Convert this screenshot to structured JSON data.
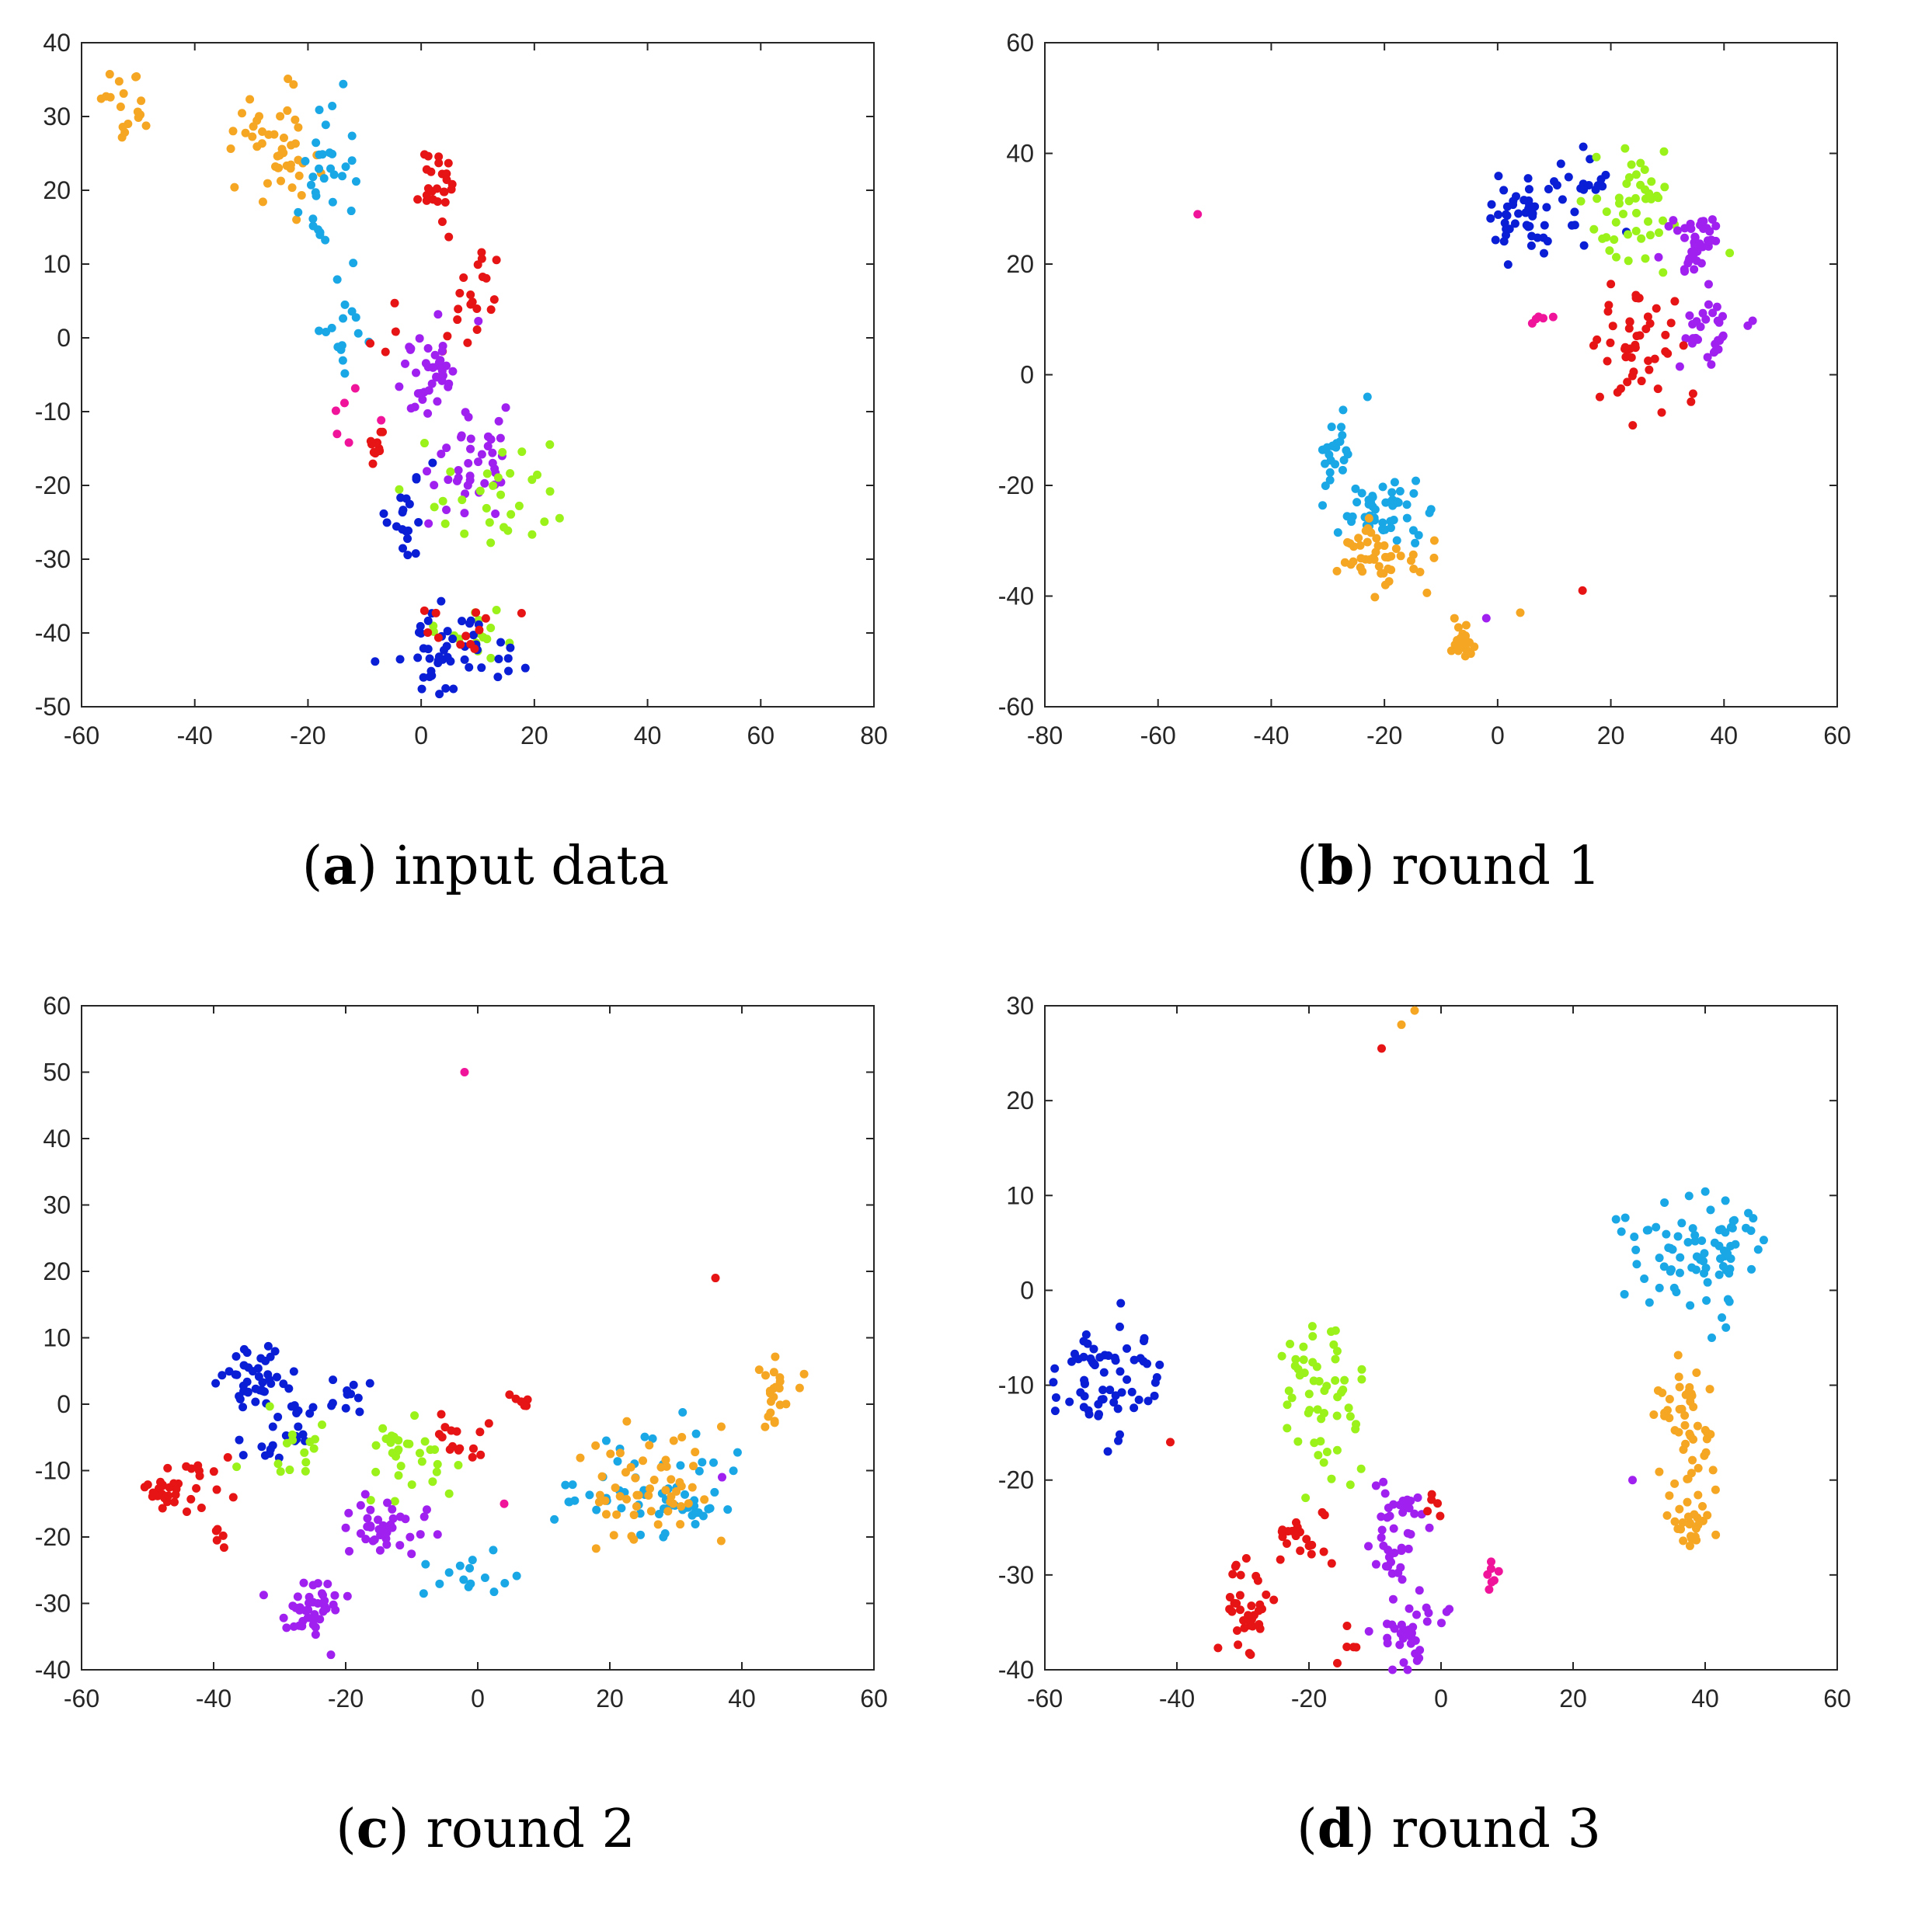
{
  "colors": {
    "orange": "#f5a623",
    "skyblue": "#1aa7e6",
    "red": "#e61414",
    "darkblue": "#0a1ed6",
    "lime": "#9bf21a",
    "purple": "#a020f0",
    "magenta": "#f0149b"
  },
  "chart_data": [
    {
      "id": "a",
      "type": "scatter",
      "caption_letter": "a",
      "caption_text": "input data",
      "xlim": [
        -60,
        80
      ],
      "ylim": [
        -50,
        40
      ],
      "xticks": [
        "-60",
        "-40",
        "-20",
        "0",
        "20",
        "40",
        "60",
        "80"
      ],
      "yticks": [
        "-50",
        "-40",
        "-30",
        "-20",
        "-10",
        "0",
        "10",
        "20",
        "30",
        "40"
      ],
      "clusters": [
        {
          "color": "orange",
          "cx": -52,
          "cy": 32,
          "sx": 2.0,
          "sy": 3.0,
          "n": 18
        },
        {
          "color": "orange",
          "cx": -26,
          "cy": 26,
          "sx": 4.0,
          "sy": 4.0,
          "n": 45
        },
        {
          "color": "skyblue",
          "cx": -18,
          "cy": 21,
          "sx": 2.5,
          "sy": 5.0,
          "n": 30
        },
        {
          "color": "skyblue",
          "cx": -14,
          "cy": 4,
          "sx": 2.5,
          "sy": 5.0,
          "n": 18
        },
        {
          "color": "red",
          "cx": 2,
          "cy": 21,
          "sx": 2.0,
          "sy": 3.0,
          "n": 25
        },
        {
          "color": "red",
          "cx": 10,
          "cy": 8,
          "sx": 3.0,
          "sy": 2.5,
          "n": 14
        },
        {
          "color": "red",
          "cx": 2,
          "cy": 1,
          "sx": 4.0,
          "sy": 2.0,
          "n": 10
        },
        {
          "color": "purple",
          "cx": 2,
          "cy": -5,
          "sx": 3.0,
          "sy": 3.0,
          "n": 40
        },
        {
          "color": "purple",
          "cx": 10,
          "cy": -17,
          "sx": 5.0,
          "sy": 3.5,
          "n": 40
        },
        {
          "color": "lime",
          "cx": 12,
          "cy": -22,
          "sx": 6.0,
          "sy": 4.0,
          "n": 30
        },
        {
          "color": "lime",
          "cx": 10,
          "cy": -40,
          "sx": 4.0,
          "sy": 2.0,
          "n": 15
        },
        {
          "color": "darkblue",
          "cx": -2,
          "cy": -24,
          "sx": 2.0,
          "sy": 3.0,
          "n": 20
        },
        {
          "color": "darkblue",
          "cx": 6,
          "cy": -42,
          "sx": 6.0,
          "sy": 3.0,
          "n": 50
        },
        {
          "color": "red",
          "cx": -9,
          "cy": -15,
          "sx": 2.0,
          "sy": 2.0,
          "n": 10
        },
        {
          "color": "magenta",
          "cx": -12,
          "cy": -12,
          "sx": 2.0,
          "sy": 2.0,
          "n": 6
        },
        {
          "color": "red",
          "cx": 5,
          "cy": -40,
          "sx": 5.0,
          "sy": 2.0,
          "n": 12
        }
      ]
    },
    {
      "id": "b",
      "type": "scatter",
      "caption_letter": "b",
      "caption_text": "round 1",
      "xlim": [
        -80,
        60
      ],
      "ylim": [
        -60,
        60
      ],
      "xticks": [
        "-80",
        "-60",
        "-40",
        "-20",
        "0",
        "20",
        "40",
        "60"
      ],
      "yticks": [
        "-60",
        "-40",
        "-20",
        "0",
        "20",
        "40",
        "60"
      ],
      "clusters": [
        {
          "color": "darkblue",
          "cx": 4,
          "cy": 28,
          "sx": 4.0,
          "sy": 3.5,
          "n": 45
        },
        {
          "color": "darkblue",
          "cx": 14,
          "cy": 33,
          "sx": 3.5,
          "sy": 4.0,
          "n": 20
        },
        {
          "color": "lime",
          "cx": 24,
          "cy": 30,
          "sx": 4.0,
          "sy": 5.0,
          "n": 45
        },
        {
          "color": "purple",
          "cx": 35,
          "cy": 24,
          "sx": 2.5,
          "sy": 3.5,
          "n": 40
        },
        {
          "color": "purple",
          "cx": 37,
          "cy": 8,
          "sx": 2.5,
          "sy": 3.0,
          "n": 30
        },
        {
          "color": "red",
          "cx": 25,
          "cy": 5,
          "sx": 4.0,
          "sy": 6.0,
          "n": 50
        },
        {
          "color": "magenta",
          "cx": 8,
          "cy": 10,
          "sx": 1.0,
          "sy": 1.0,
          "n": 5
        },
        {
          "color": "skyblue",
          "cx": -28,
          "cy": -13,
          "sx": 1.5,
          "sy": 3.0,
          "n": 22
        },
        {
          "color": "skyblue",
          "cx": -20,
          "cy": -24,
          "sx": 4.0,
          "sy": 3.5,
          "n": 50
        },
        {
          "color": "orange",
          "cx": -21,
          "cy": -33,
          "sx": 4.5,
          "sy": 3.0,
          "n": 45
        },
        {
          "color": "orange",
          "cx": -6,
          "cy": -49,
          "sx": 1.0,
          "sy": 1.5,
          "n": 28
        }
      ],
      "points": [
        {
          "color": "magenta",
          "x": -53,
          "y": 29
        },
        {
          "color": "skyblue",
          "x": -23,
          "y": -4
        },
        {
          "color": "orange",
          "x": 4,
          "y": -43
        },
        {
          "color": "red",
          "x": 15,
          "y": -39
        },
        {
          "color": "purple",
          "x": -2,
          "y": -44
        },
        {
          "color": "lime",
          "x": 41,
          "y": 22
        }
      ]
    },
    {
      "id": "c",
      "type": "scatter",
      "caption_letter": "c",
      "caption_text": "round 2",
      "xlim": [
        -60,
        60
      ],
      "ylim": [
        -40,
        60
      ],
      "xticks": [
        "-60",
        "-40",
        "-20",
        "0",
        "20",
        "40",
        "60"
      ],
      "yticks": [
        "-40",
        "-30",
        "-20",
        "-10",
        "0",
        "10",
        "20",
        "30",
        "40",
        "50",
        "60"
      ],
      "clusters": [
        {
          "color": "darkblue",
          "cx": -34,
          "cy": 5,
          "sx": 2.0,
          "sy": 2.5,
          "n": 35
        },
        {
          "color": "darkblue",
          "cx": -30,
          "cy": -3,
          "sx": 3.0,
          "sy": 4.0,
          "n": 30
        },
        {
          "color": "darkblue",
          "cx": -20,
          "cy": 1,
          "sx": 2.5,
          "sy": 2.0,
          "n": 10
        },
        {
          "color": "red",
          "cx": -48,
          "cy": -13,
          "sx": 1.8,
          "sy": 1.0,
          "n": 20
        },
        {
          "color": "red",
          "cx": -42,
          "cy": -12,
          "sx": 2.0,
          "sy": 2.5,
          "n": 15
        },
        {
          "color": "red",
          "cx": -39,
          "cy": -20,
          "sx": 0.5,
          "sy": 0.8,
          "n": 5
        },
        {
          "color": "lime",
          "cx": -10,
          "cy": -8,
          "sx": 4.0,
          "sy": 3.0,
          "n": 30
        },
        {
          "color": "lime",
          "cx": -28,
          "cy": -5,
          "sx": 4.0,
          "sy": 3.0,
          "n": 15
        },
        {
          "color": "purple",
          "cx": -15,
          "cy": -18,
          "sx": 3.5,
          "sy": 2.5,
          "n": 40
        },
        {
          "color": "purple",
          "cx": -25,
          "cy": -31,
          "sx": 3.0,
          "sy": 2.0,
          "n": 40
        },
        {
          "color": "red",
          "cx": -2,
          "cy": -5,
          "sx": 3.0,
          "sy": 2.0,
          "n": 15
        },
        {
          "color": "red",
          "cx": 7,
          "cy": 0,
          "sx": 1.0,
          "sy": 1.0,
          "n": 6
        },
        {
          "color": "skyblue",
          "cx": 0,
          "cy": -26,
          "sx": 3.5,
          "sy": 2.0,
          "n": 15
        },
        {
          "color": "skyblue",
          "cx": 24,
          "cy": -13,
          "sx": 6.0,
          "sy": 4.0,
          "n": 50
        },
        {
          "color": "skyblue",
          "cx": 32,
          "cy": -16,
          "sx": 2.5,
          "sy": 2.0,
          "n": 15
        },
        {
          "color": "orange",
          "cx": 26,
          "cy": -12,
          "sx": 5.0,
          "sy": 5.0,
          "n": 55
        },
        {
          "color": "orange",
          "cx": 45,
          "cy": 1,
          "sx": 1.5,
          "sy": 2.5,
          "n": 22
        }
      ],
      "points": [
        {
          "color": "magenta",
          "x": -2,
          "y": 50
        },
        {
          "color": "red",
          "x": 36,
          "y": 19
        },
        {
          "color": "magenta",
          "x": 4,
          "y": -15
        },
        {
          "color": "purple",
          "x": 37,
          "y": -11
        }
      ]
    },
    {
      "id": "d",
      "type": "scatter",
      "caption_letter": "d",
      "caption_text": "round 3",
      "xlim": [
        -60,
        60
      ],
      "ylim": [
        -40,
        30
      ],
      "xticks": [
        "-60",
        "-40",
        "-20",
        "0",
        "20",
        "40",
        "60"
      ],
      "yticks": [
        "-40",
        "-30",
        "-20",
        "-10",
        "0",
        "10",
        "20",
        "30"
      ],
      "clusters": [
        {
          "color": "darkblue",
          "cx": -50,
          "cy": -9,
          "sx": 4.5,
          "sy": 3.0,
          "n": 65
        },
        {
          "color": "lime",
          "cx": -19,
          "cy": -8,
          "sx": 3.5,
          "sy": 3.0,
          "n": 40
        },
        {
          "color": "lime",
          "cx": -16,
          "cy": -17,
          "sx": 2.5,
          "sy": 3.0,
          "n": 15
        },
        {
          "color": "red",
          "cx": -29,
          "cy": -33,
          "sx": 1.5,
          "sy": 2.5,
          "n": 35
        },
        {
          "color": "red",
          "cx": -20,
          "cy": -26,
          "sx": 3.5,
          "sy": 1.5,
          "n": 20
        },
        {
          "color": "purple",
          "cx": -7,
          "cy": -26,
          "sx": 2.0,
          "sy": 3.5,
          "n": 40
        },
        {
          "color": "purple",
          "cx": -5,
          "cy": -36,
          "sx": 2.5,
          "sy": 2.0,
          "n": 35
        },
        {
          "color": "red",
          "cx": -1,
          "cy": -23,
          "sx": 1.0,
          "sy": 1.0,
          "n": 5
        },
        {
          "color": "magenta",
          "cx": 8,
          "cy": -30,
          "sx": 0.5,
          "sy": 1.0,
          "n": 7
        },
        {
          "color": "skyblue",
          "cx": 39,
          "cy": 4,
          "sx": 5.0,
          "sy": 3.0,
          "n": 80
        },
        {
          "color": "orange",
          "cx": 37,
          "cy": -15,
          "sx": 2.5,
          "sy": 5.5,
          "n": 55
        },
        {
          "color": "orange",
          "cx": 38,
          "cy": -25,
          "sx": 1.5,
          "sy": 1.5,
          "n": 20
        },
        {
          "color": "red",
          "cx": -14,
          "cy": -38,
          "sx": 1.0,
          "sy": 1.0,
          "n": 5
        }
      ],
      "points": [
        {
          "color": "orange",
          "x": -4,
          "y": 29.5
        },
        {
          "color": "orange",
          "x": -6,
          "y": 28
        },
        {
          "color": "red",
          "x": -9,
          "y": 25.5
        },
        {
          "color": "skyblue",
          "x": 41,
          "y": -5
        },
        {
          "color": "purple",
          "x": 29,
          "y": -20
        },
        {
          "color": "red",
          "x": -41,
          "y": -16
        }
      ]
    }
  ]
}
